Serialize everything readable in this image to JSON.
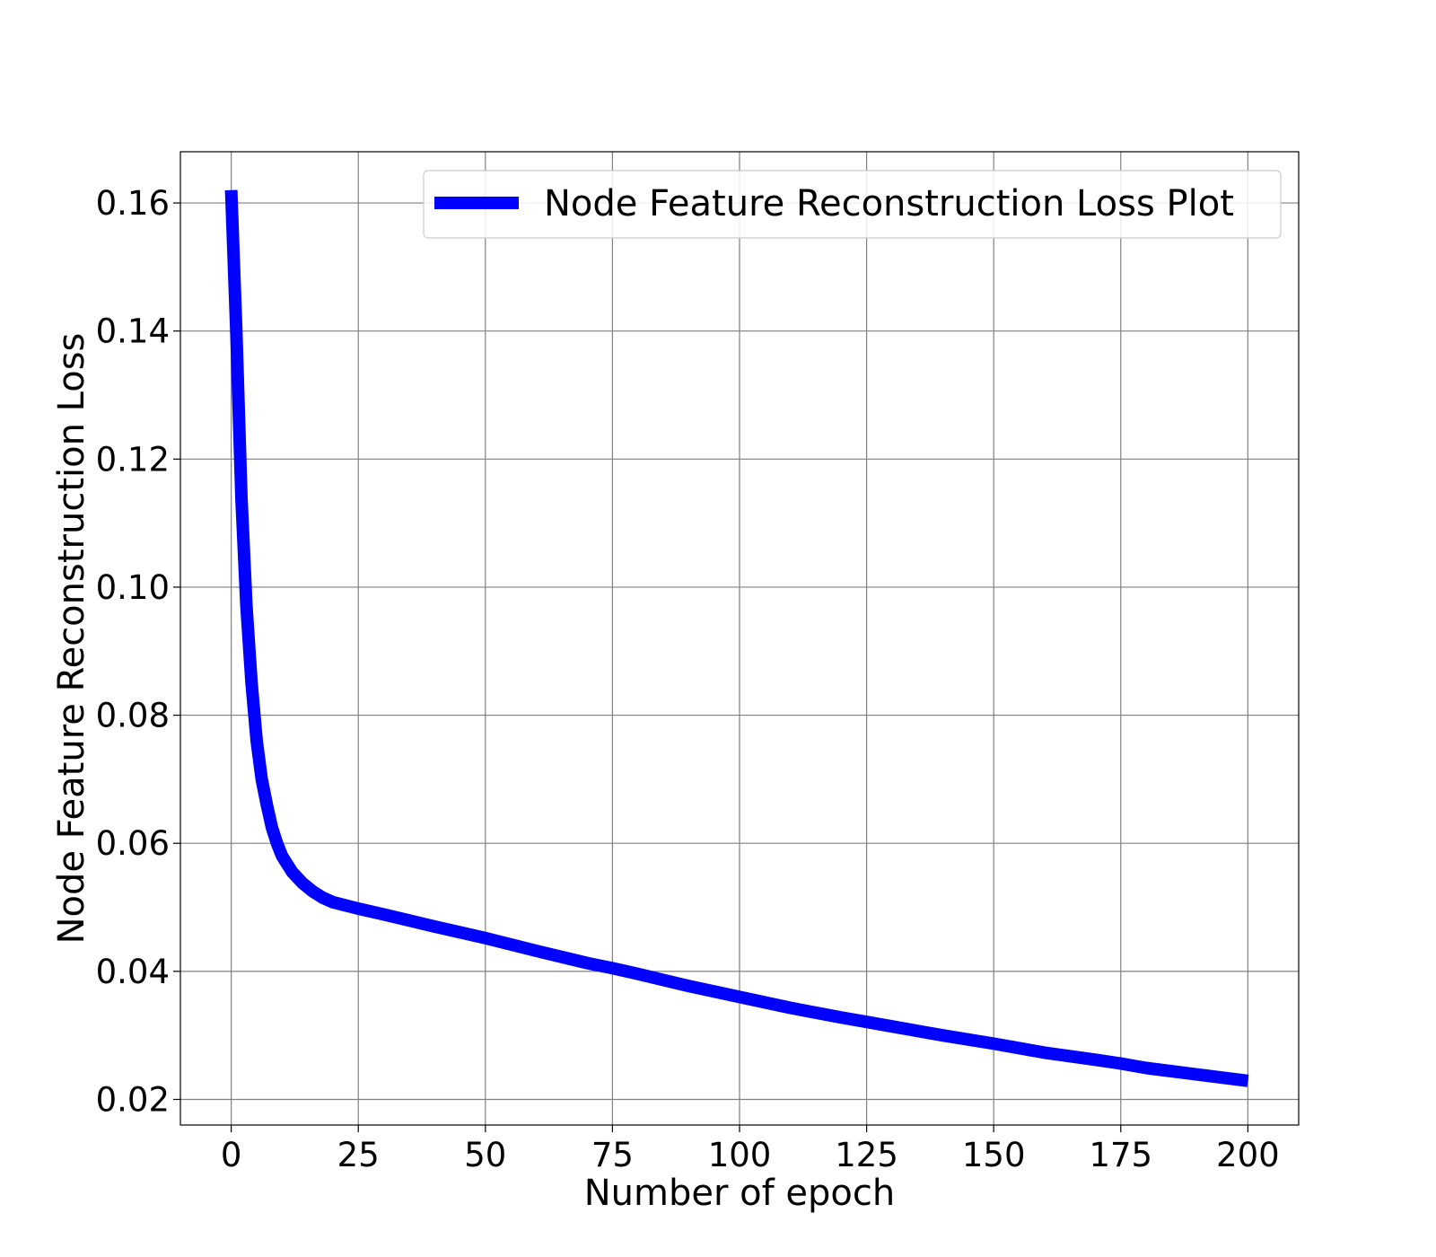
{
  "chart_data": {
    "type": "line",
    "title": "",
    "xlabel": "Number of epoch",
    "ylabel": "Node Feature Reconstruction Loss",
    "xlim": [
      -10,
      210
    ],
    "ylim": [
      0.016,
      0.168
    ],
    "xticks": [
      0,
      25,
      50,
      75,
      100,
      125,
      150,
      175,
      200
    ],
    "xtick_labels": [
      "0",
      "25",
      "50",
      "75",
      "100",
      "125",
      "150",
      "175",
      "200"
    ],
    "yticks": [
      0.02,
      0.04,
      0.06,
      0.08,
      0.1,
      0.12,
      0.14,
      0.16
    ],
    "ytick_labels": [
      "0.02",
      "0.04",
      "0.06",
      "0.08",
      "0.10",
      "0.12",
      "0.14",
      "0.16"
    ],
    "grid": true,
    "legend_position": "top-right",
    "series": [
      {
        "name": "Node Feature Reconstruction Loss Plot",
        "color": "#0000ff",
        "x": [
          0,
          1,
          2,
          3,
          4,
          5,
          6,
          7,
          8,
          9,
          10,
          12,
          14,
          16,
          18,
          20,
          25,
          30,
          40,
          50,
          60,
          70,
          75,
          80,
          90,
          100,
          110,
          120,
          125,
          130,
          140,
          150,
          160,
          170,
          175,
          180,
          190,
          200
        ],
        "y": [
          0.162,
          0.14,
          0.114,
          0.097,
          0.085,
          0.076,
          0.07,
          0.066,
          0.0625,
          0.06,
          0.058,
          0.0555,
          0.0538,
          0.0525,
          0.0515,
          0.0508,
          0.0498,
          0.0489,
          0.047,
          0.0452,
          0.0432,
          0.0413,
          0.0405,
          0.0396,
          0.0377,
          0.036,
          0.0343,
          0.0328,
          0.0321,
          0.0314,
          0.03,
          0.0287,
          0.0273,
          0.0262,
          0.0256,
          0.0249,
          0.0239,
          0.0229
        ]
      }
    ]
  }
}
